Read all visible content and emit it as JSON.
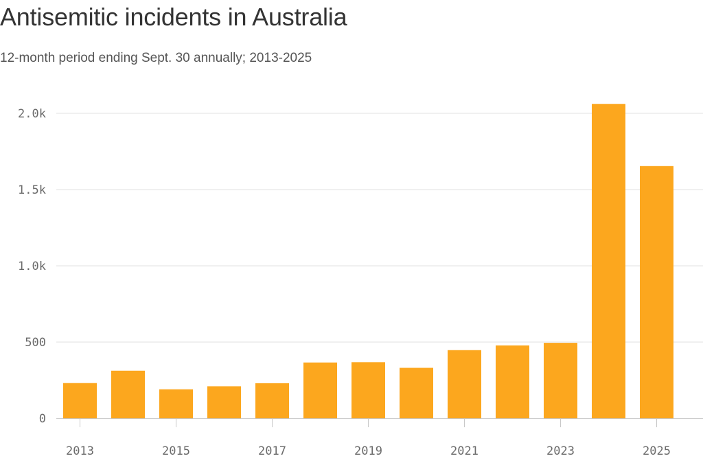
{
  "title": "Antisemitic incidents in Australia",
  "subtitle": "12-month period ending Sept. 30 annually; 2013-2025",
  "colors": {
    "bar": "#FCA71E",
    "grid": "#e2e2e2",
    "axis": "#c8c8c8"
  },
  "chart_data": {
    "type": "bar",
    "title": "Antisemitic incidents in Australia",
    "subtitle": "12-month period ending Sept. 30 annually; 2013-2025",
    "xlabel": "",
    "ylabel": "",
    "categories": [
      "2013",
      "2014",
      "2015",
      "2016",
      "2017",
      "2018",
      "2019",
      "2020",
      "2021",
      "2022",
      "2023",
      "2024",
      "2025"
    ],
    "values": [
      231,
      312,
      190,
      210,
      230,
      366,
      368,
      331,
      447,
      478,
      495,
      2062,
      1654
    ],
    "ylim": [
      0,
      2000
    ],
    "y_ticks": [
      {
        "value": 0,
        "label": "0"
      },
      {
        "value": 500,
        "label": "500"
      },
      {
        "value": 1000,
        "label": "1.0k"
      },
      {
        "value": 1500,
        "label": "1.5k"
      },
      {
        "value": 2000,
        "label": "2.0k"
      }
    ],
    "x_tick_labels": [
      "2013",
      "2015",
      "2017",
      "2019",
      "2021",
      "2023",
      "2025"
    ],
    "grid": true,
    "legend": "none"
  }
}
